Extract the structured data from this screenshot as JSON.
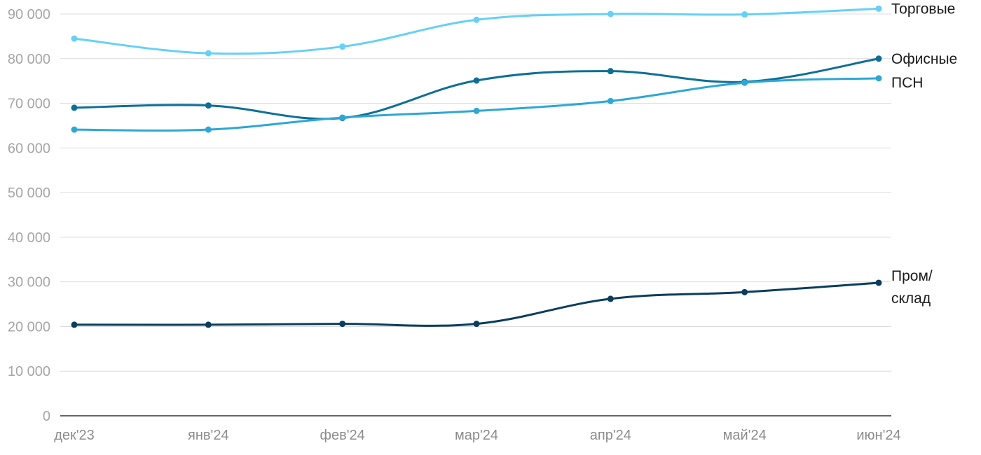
{
  "chart_data": {
    "type": "line",
    "categories": [
      "дек'23",
      "янв'24",
      "фев'24",
      "мар'24",
      "апр'24",
      "май'24",
      "июн'24"
    ],
    "y_ticks": [
      "0",
      "10 000",
      "20 000",
      "30 000",
      "40 000",
      "50 000",
      "60 000",
      "70 000",
      "80 000",
      "90 000"
    ],
    "ylim": [
      0,
      90000
    ],
    "grid": true,
    "legend": "inline-right",
    "series": [
      {
        "name": "Торговые",
        "label_lines": [
          "Торговые"
        ],
        "color": "#66d0f5",
        "values": [
          84500,
          81200,
          82700,
          88700,
          90000,
          89900,
          91200
        ]
      },
      {
        "name": "Офисные",
        "label_lines": [
          "Офисные"
        ],
        "color": "#0e6f96",
        "values": [
          69000,
          69500,
          66700,
          75100,
          77200,
          74800,
          80000
        ]
      },
      {
        "name": "ПСН",
        "label_lines": [
          "ПСН"
        ],
        "color": "#2ea7d4",
        "values": [
          64100,
          64100,
          66800,
          68300,
          70500,
          74600,
          75600
        ]
      },
      {
        "name": "Пром/склад",
        "label_lines": [
          "Пром/",
          "склад"
        ],
        "color": "#0a3d5e",
        "values": [
          20400,
          20400,
          20600,
          20600,
          26200,
          27700,
          29800
        ]
      }
    ]
  }
}
